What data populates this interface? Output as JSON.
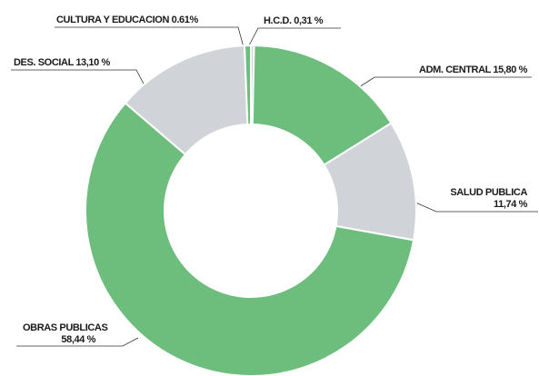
{
  "chart_data": {
    "type": "donut",
    "categories": [
      "H.C.D.",
      "ADM. CENTRAL",
      "SALUD PUBLICA",
      "OBRAS PUBLICAS",
      "DES. SOCIAL",
      "CULTURA Y EDUCACION"
    ],
    "values": [
      0.31,
      15.8,
      11.74,
      58.44,
      13.1,
      0.61
    ],
    "value_labels": [
      "0,31 %",
      "15,80 %",
      "11,74 %",
      "58,44 %",
      "13,10 %",
      "0.61%"
    ],
    "colors": [
      "#d0d3d8",
      "#6dbd7d",
      "#d0d3d8",
      "#6dbd7d",
      "#d0d3d8",
      "#6dbd7d"
    ]
  }
}
